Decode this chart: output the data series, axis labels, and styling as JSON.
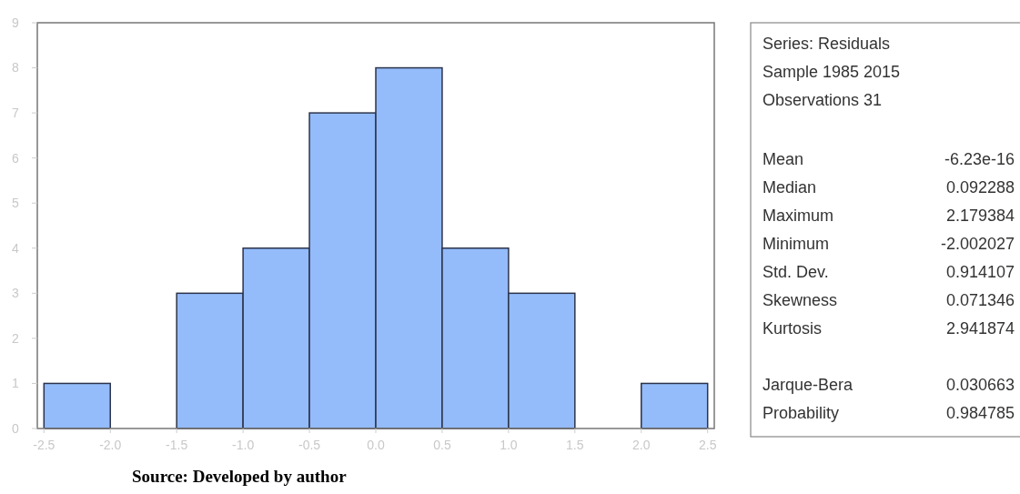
{
  "chart_data": {
    "type": "histogram",
    "bins": [
      -2.5,
      -2.0,
      -1.5,
      -1.0,
      -0.5,
      0.0,
      0.5,
      1.0,
      1.5,
      2.0,
      2.5
    ],
    "values": [
      1,
      0,
      3,
      4,
      7,
      8,
      4,
      3,
      0,
      1
    ],
    "color": "#94bbfa",
    "xlim": [
      -2.55,
      2.55
    ],
    "xticks": [
      {
        "value": -2.5,
        "label": "-2.5"
      },
      {
        "value": -2.0,
        "label": "-2.0"
      },
      {
        "value": -1.5,
        "label": "-1.5"
      },
      {
        "value": -1.0,
        "label": "-1.0"
      },
      {
        "value": -0.5,
        "label": "-0.5"
      },
      {
        "value": 0,
        "label": "0.0"
      },
      {
        "value": 0.5,
        "label": "0.5"
      },
      {
        "value": 1.0,
        "label": "1.0"
      },
      {
        "value": 1.5,
        "label": "1.5"
      },
      {
        "value": 2.0,
        "label": "2.0"
      },
      {
        "value": 2.5,
        "label": "2.5"
      }
    ],
    "ylim": [
      0,
      9
    ],
    "yticks": [
      0,
      1,
      2,
      3,
      4,
      5,
      6,
      7,
      8,
      9
    ],
    "grid": false,
    "annotations": [
      "Series: Residuals",
      "Sample 1985 2015",
      "Observations 31",
      "Mean",
      "-6.23e-16",
      "Median",
      "0.092288",
      "Maximum",
      "2.179384",
      "Minimum",
      "-2.002027",
      "Std. Dev.",
      "0.914107",
      "Skewness",
      "0.071346",
      "Kurtosis",
      "2.941874",
      "Jarque-Bera",
      "0.030663",
      "Probability",
      "0.984785",
      "Source: Developed by author"
    ]
  }
}
